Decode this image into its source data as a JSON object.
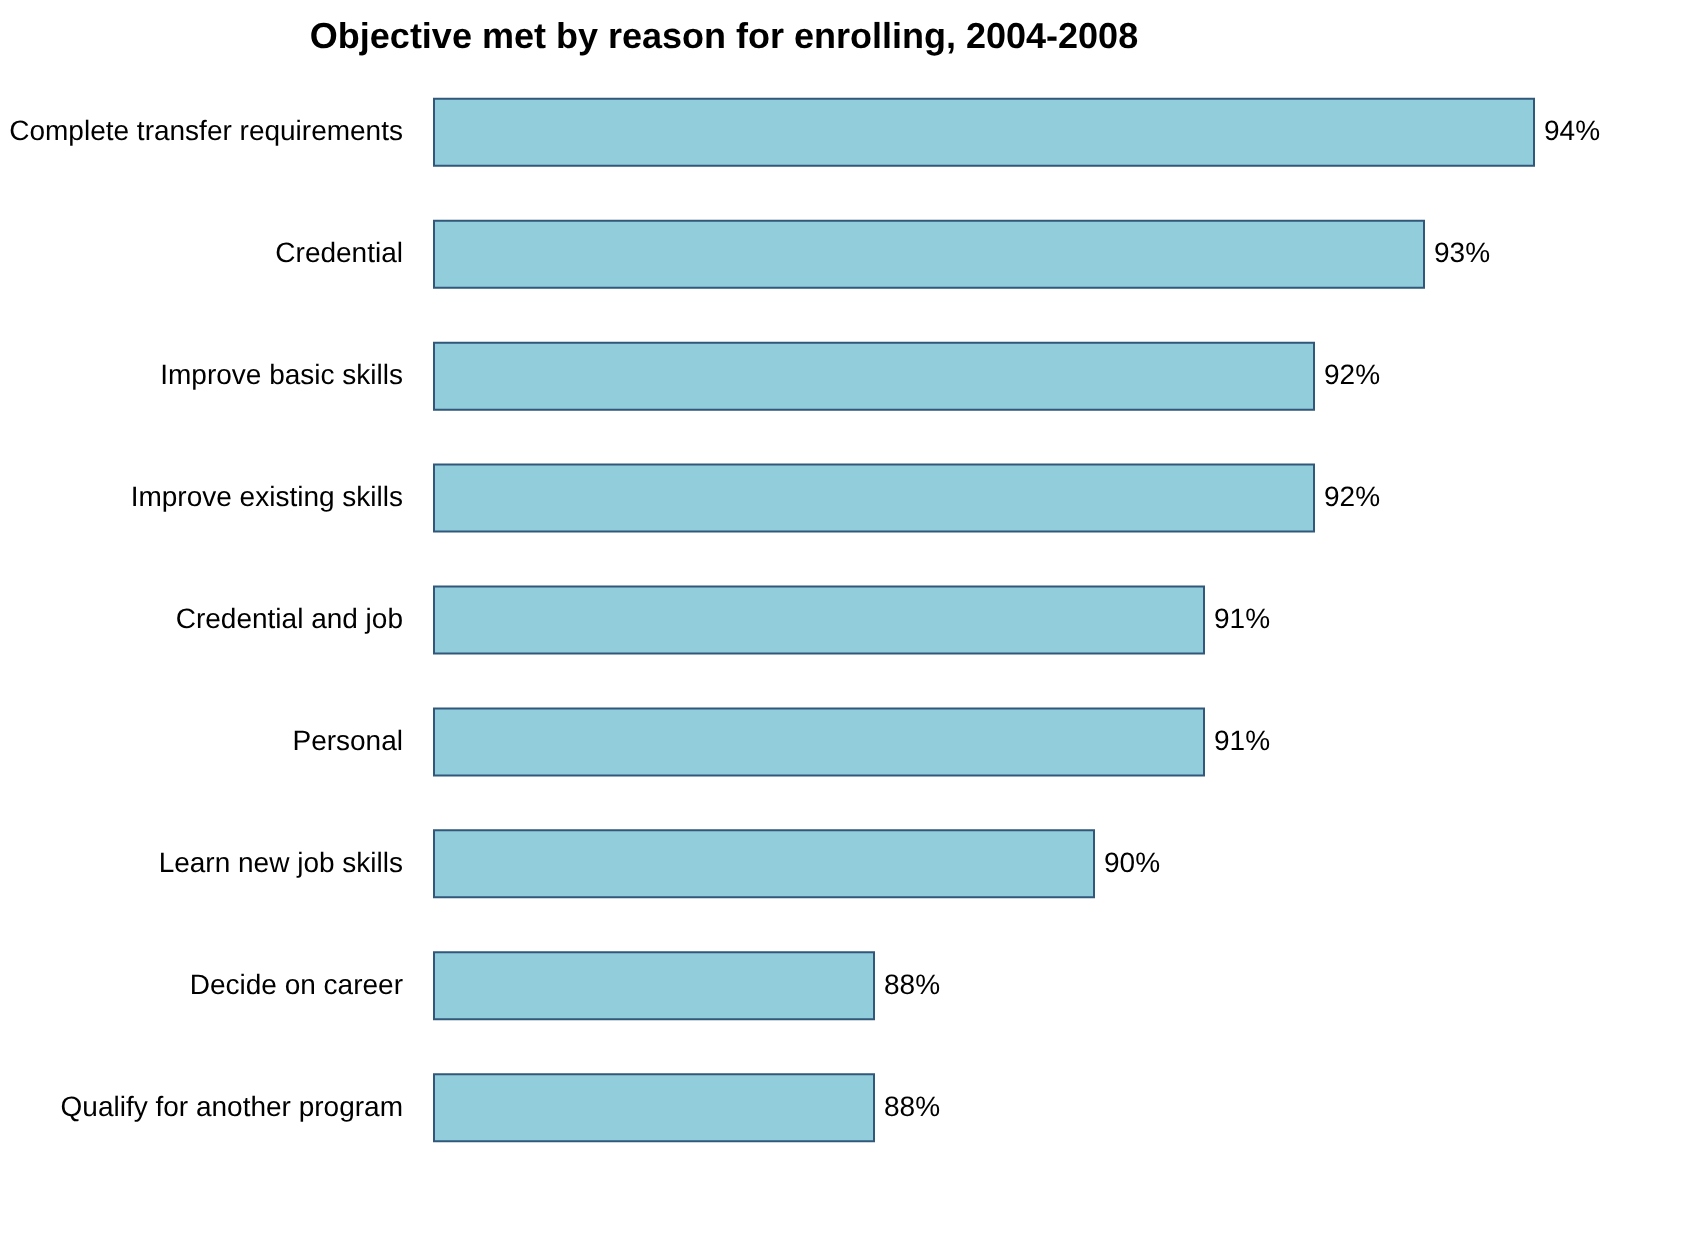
{
  "chart_data": {
    "type": "bar",
    "orientation": "horizontal",
    "title": "Objective met by reason for enrolling, 2004-2008",
    "categories": [
      "Complete transfer requirements",
      "Credential",
      "Improve basic skills",
      "Improve existing skills",
      "Credential and job",
      "Personal",
      "Learn new job skills",
      "Decide on career",
      "Qualify for another program"
    ],
    "values": [
      94,
      93,
      92,
      92,
      91,
      91,
      90,
      88,
      88
    ],
    "value_labels": [
      "94%",
      "93%",
      "92%",
      "92%",
      "91%",
      "91%",
      "90%",
      "88%",
      "88%"
    ],
    "xlim": [
      84,
      94
    ],
    "color": "#92cddc",
    "grid": false
  }
}
